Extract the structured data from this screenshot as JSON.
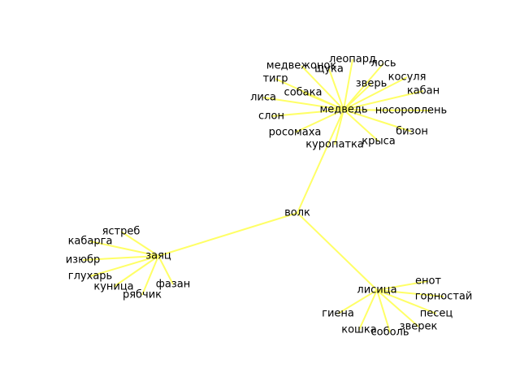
{
  "graph": {
    "edge_color": "#ffff66",
    "text_color": "#000000",
    "nodes": [
      {
        "id": "volk",
        "label": "волк"
      },
      {
        "id": "medved",
        "label": "медведь"
      },
      {
        "id": "zayats",
        "label": "заяц"
      },
      {
        "id": "lisitsa",
        "label": "лисица"
      },
      {
        "id": "medvezhonok",
        "label": "медвежонок"
      },
      {
        "id": "leopard",
        "label": "леопард"
      },
      {
        "id": "los",
        "label": "лось"
      },
      {
        "id": "shchuka",
        "label": "щука"
      },
      {
        "id": "kosulya",
        "label": "косуля"
      },
      {
        "id": "tigr",
        "label": "тигр"
      },
      {
        "id": "zver",
        "label": "зверь"
      },
      {
        "id": "sobaka",
        "label": "собака"
      },
      {
        "id": "kaban",
        "label": "кабан"
      },
      {
        "id": "lisa",
        "label": "лиса"
      },
      {
        "id": "nosorog",
        "label": "носорог"
      },
      {
        "id": "olen",
        "label": "олень"
      },
      {
        "id": "slon",
        "label": "слон"
      },
      {
        "id": "rosomakha",
        "label": "росомаха"
      },
      {
        "id": "bizon",
        "label": "бизон"
      },
      {
        "id": "kuropatka",
        "label": "куропатка"
      },
      {
        "id": "krysa",
        "label": "крыса"
      },
      {
        "id": "yastreb",
        "label": "ястреб"
      },
      {
        "id": "kabarga",
        "label": "кабарга"
      },
      {
        "id": "izyubr",
        "label": "изюбр"
      },
      {
        "id": "glukhar",
        "label": "глухарь"
      },
      {
        "id": "kunitsa",
        "label": "куница"
      },
      {
        "id": "fazan",
        "label": "фазан"
      },
      {
        "id": "ryabchik",
        "label": "рябчик"
      },
      {
        "id": "enot",
        "label": "енот"
      },
      {
        "id": "gornostay",
        "label": "горностай"
      },
      {
        "id": "pesets",
        "label": "песец"
      },
      {
        "id": "giena",
        "label": "гиена"
      },
      {
        "id": "zverek",
        "label": "зверек"
      },
      {
        "id": "koshka",
        "label": "кошка"
      },
      {
        "id": "sobol",
        "label": "соболь"
      }
    ],
    "edges": [
      [
        "volk",
        "medved"
      ],
      [
        "volk",
        "zayats"
      ],
      [
        "volk",
        "lisitsa"
      ],
      [
        "medved",
        "medvezhonok"
      ],
      [
        "medved",
        "leopard"
      ],
      [
        "medved",
        "los"
      ],
      [
        "medved",
        "shchuka"
      ],
      [
        "medved",
        "kosulya"
      ],
      [
        "medved",
        "tigr"
      ],
      [
        "medved",
        "zver"
      ],
      [
        "medved",
        "sobaka"
      ],
      [
        "medved",
        "kaban"
      ],
      [
        "medved",
        "lisa"
      ],
      [
        "medved",
        "nosorog"
      ],
      [
        "medved",
        "olen"
      ],
      [
        "medved",
        "slon"
      ],
      [
        "medved",
        "rosomakha"
      ],
      [
        "medved",
        "bizon"
      ],
      [
        "medved",
        "kuropatka"
      ],
      [
        "medved",
        "krysa"
      ],
      [
        "zayats",
        "yastreb"
      ],
      [
        "zayats",
        "kabarga"
      ],
      [
        "zayats",
        "izyubr"
      ],
      [
        "zayats",
        "glukhar"
      ],
      [
        "zayats",
        "kunitsa"
      ],
      [
        "zayats",
        "fazan"
      ],
      [
        "zayats",
        "ryabchik"
      ],
      [
        "lisitsa",
        "enot"
      ],
      [
        "lisitsa",
        "gornostay"
      ],
      [
        "lisitsa",
        "pesets"
      ],
      [
        "lisitsa",
        "giena"
      ],
      [
        "lisitsa",
        "zverek"
      ],
      [
        "lisitsa",
        "koshka"
      ],
      [
        "lisitsa",
        "sobol"
      ]
    ]
  }
}
